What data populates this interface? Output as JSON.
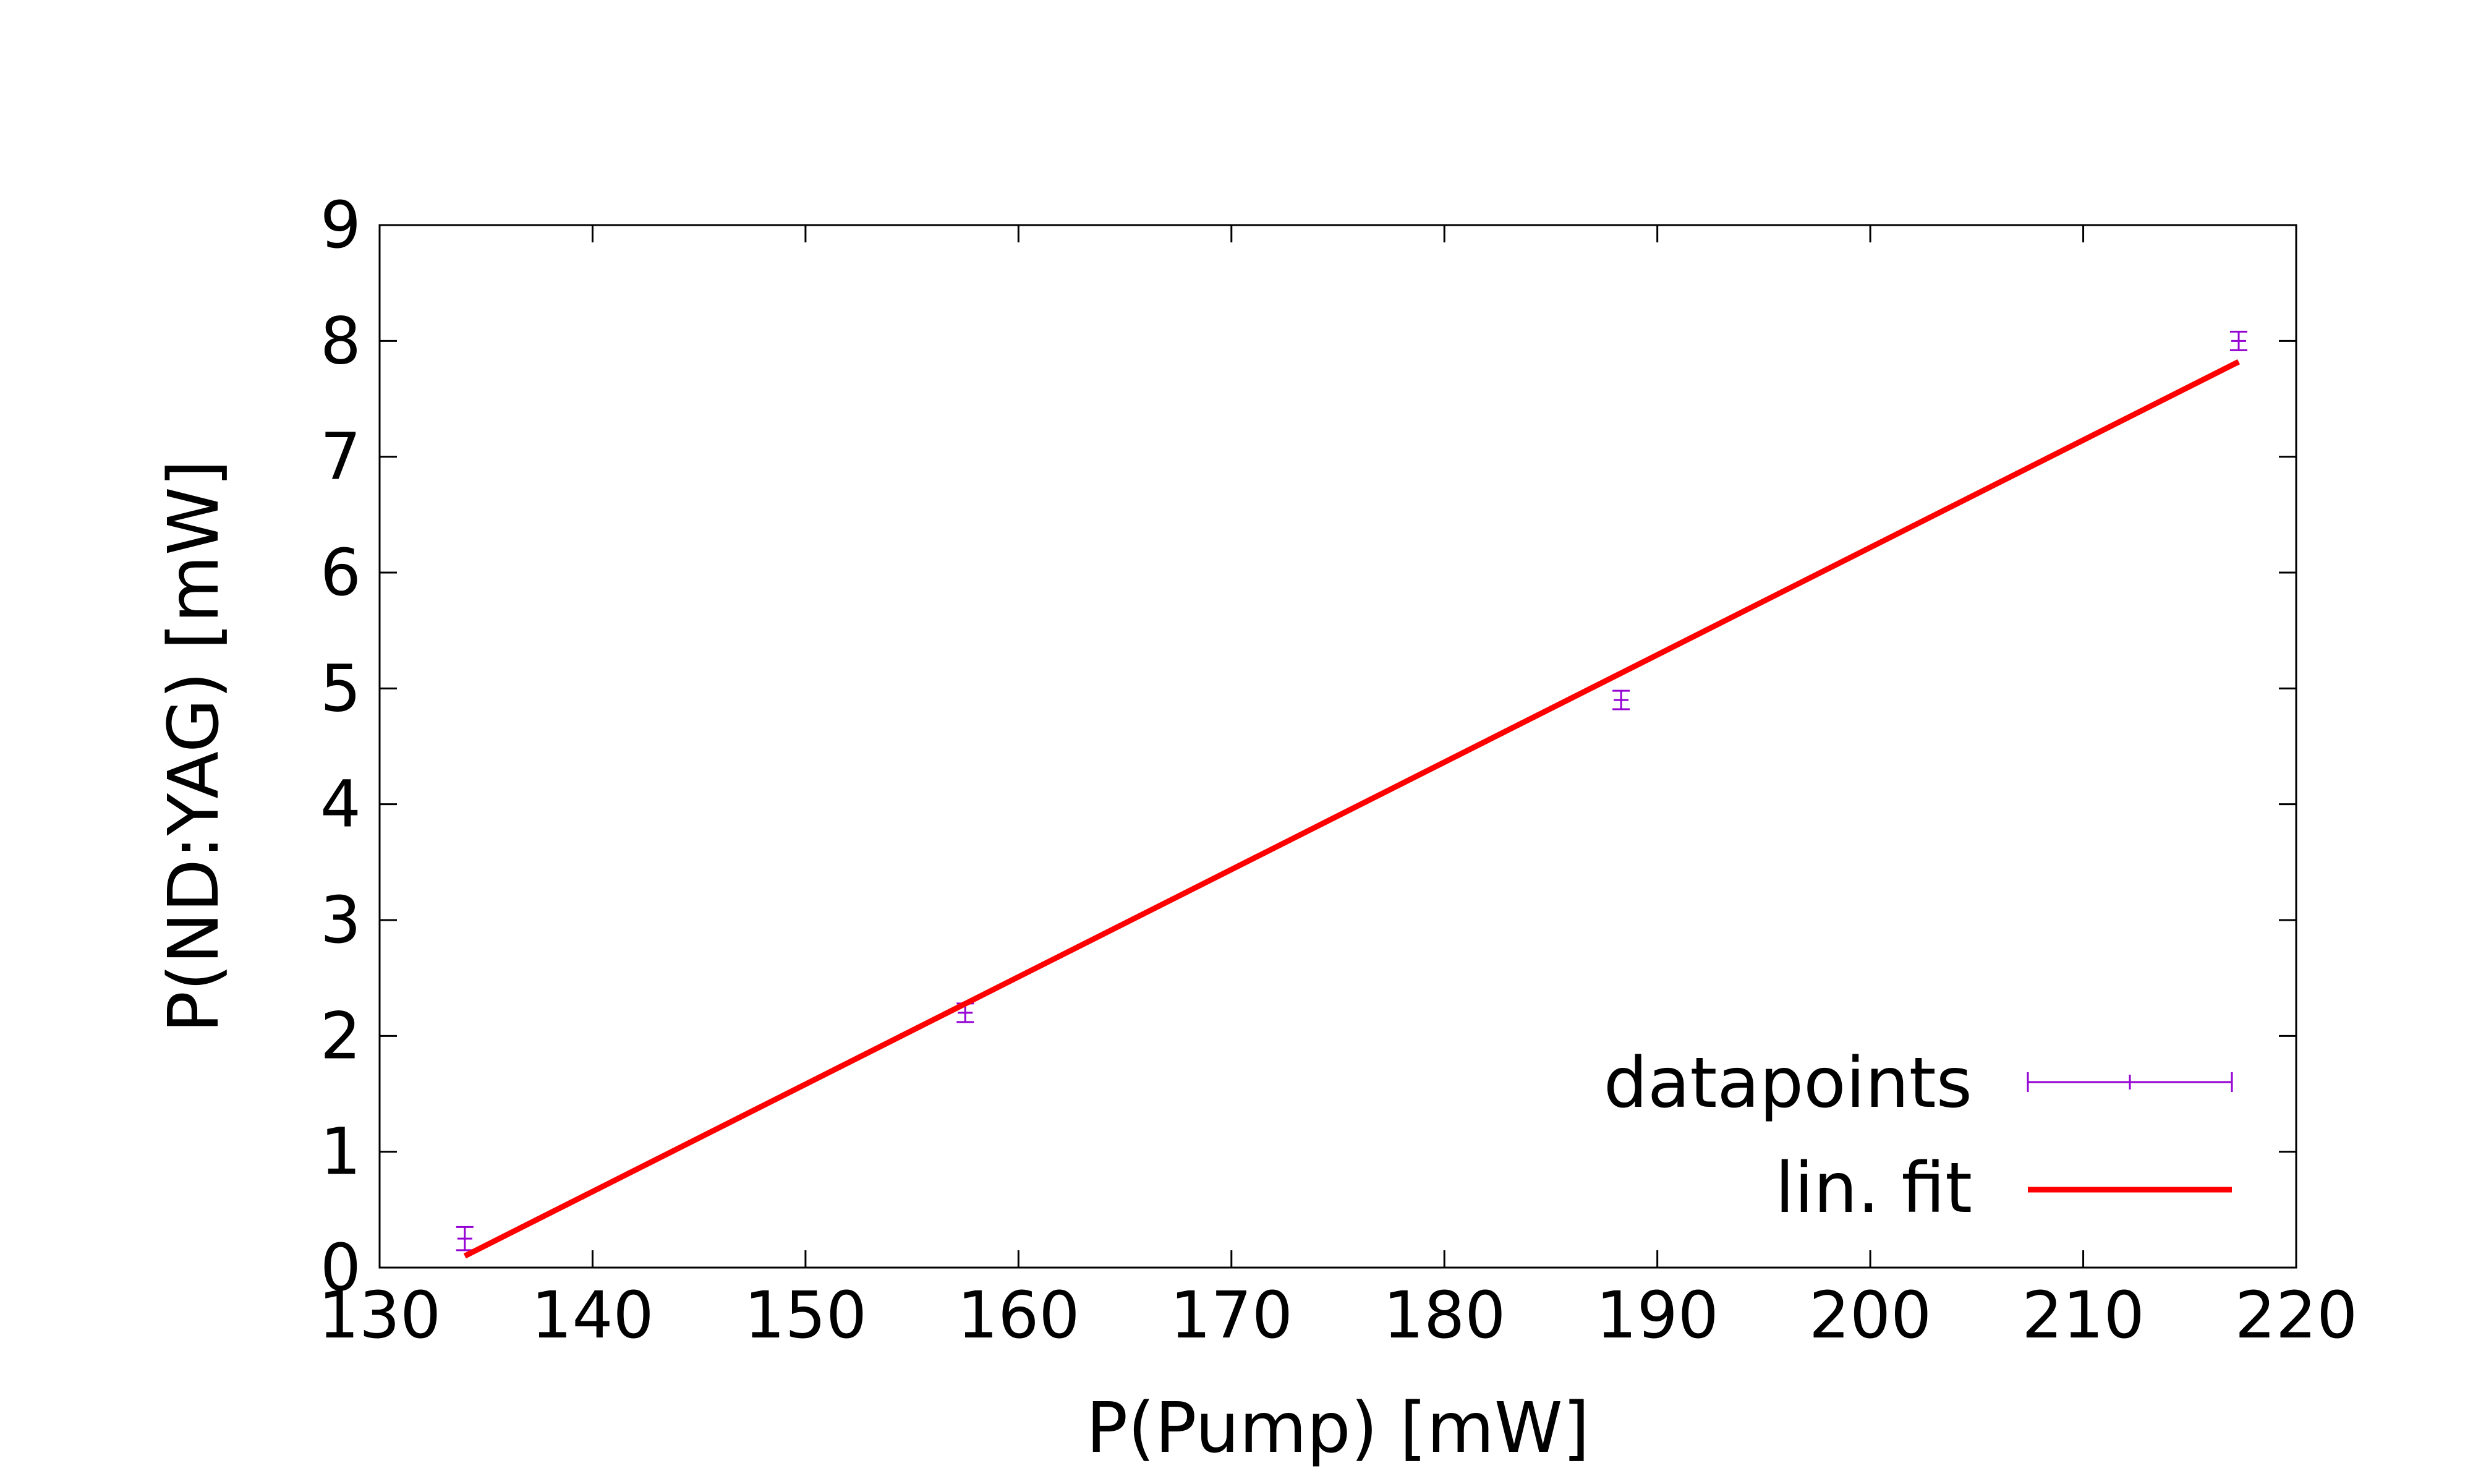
{
  "chart_data": {
    "type": "scatter",
    "title": "",
    "xlabel": "P(Pump) [mW]",
    "ylabel": "P(ND:YAG) [mW]",
    "xlim": [
      130,
      220
    ],
    "ylim": [
      0,
      9
    ],
    "xticks": [
      130,
      140,
      150,
      160,
      170,
      180,
      190,
      200,
      210,
      220
    ],
    "yticks": [
      0,
      1,
      2,
      3,
      4,
      5,
      6,
      7,
      8,
      9
    ],
    "xtick_labels": [
      "130",
      "140",
      "150",
      "160",
      "170",
      "180",
      "190",
      "200",
      "210",
      "220"
    ],
    "ytick_labels": [
      "0",
      "1",
      "2",
      "3",
      "4",
      "5",
      "6",
      "7",
      "8",
      "9"
    ],
    "grid": false,
    "legend_position": "bottom-right",
    "series": [
      {
        "name": "datapoints",
        "kind": "errorbars",
        "color": "#9400d3",
        "points": [
          {
            "x": 134,
            "y": 0.25,
            "yerr": 0.1
          },
          {
            "x": 157.5,
            "y": 2.2,
            "yerr": 0.08
          },
          {
            "x": 188.3,
            "y": 4.9,
            "yerr": 0.08
          },
          {
            "x": 217.3,
            "y": 8.0,
            "yerr": 0.08
          }
        ]
      },
      {
        "name": "lin. fit",
        "kind": "line",
        "color": "#ff0000",
        "x": [
          134,
          217.3
        ],
        "y": [
          0.1,
          7.82
        ]
      }
    ]
  }
}
